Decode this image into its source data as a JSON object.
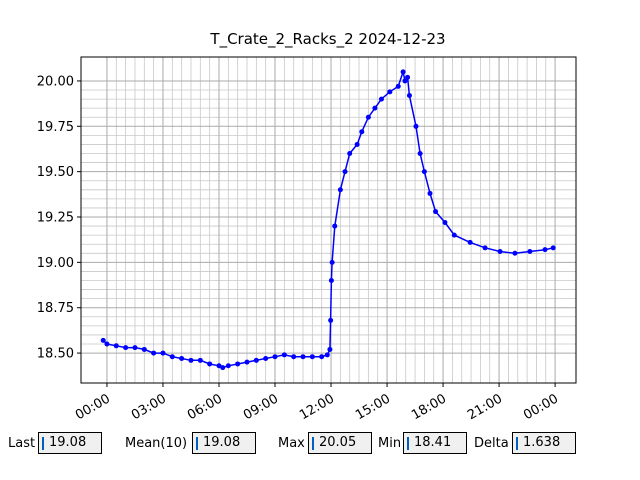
{
  "chart_data": {
    "type": "line",
    "title": "T_Crate_2_Racks_2 2024-12-23",
    "x": [
      -0.2,
      0,
      0.5,
      1,
      1.5,
      2,
      2.5,
      3,
      3.5,
      4,
      4.5,
      5,
      5.5,
      6,
      6.2,
      6.5,
      7,
      7.5,
      8,
      8.5,
      9,
      9.5,
      10,
      10.5,
      11,
      11.5,
      11.8,
      11.94,
      11.98,
      12.02,
      12.06,
      12.2,
      12.5,
      12.75,
      13.0,
      13.4,
      13.65,
      14.0,
      14.35,
      14.7,
      15.15,
      15.6,
      15.86,
      15.96,
      16.1,
      16.2,
      16.55,
      16.77,
      17.0,
      17.3,
      17.6,
      18.1,
      18.6,
      19.45,
      20.25,
      21.05,
      21.85,
      22.65,
      23.46,
      23.9
    ],
    "values": [
      18.57,
      18.55,
      18.54,
      18.53,
      18.53,
      18.52,
      18.5,
      18.5,
      18.48,
      18.47,
      18.46,
      18.46,
      18.44,
      18.43,
      18.42,
      18.43,
      18.44,
      18.45,
      18.46,
      18.47,
      18.48,
      18.49,
      18.48,
      18.48,
      18.48,
      18.48,
      18.49,
      18.52,
      18.68,
      18.9,
      19.0,
      19.2,
      19.4,
      19.5,
      19.6,
      19.65,
      19.72,
      19.8,
      19.85,
      19.9,
      19.94,
      19.97,
      20.05,
      20.0,
      20.02,
      19.92,
      19.75,
      19.6,
      19.5,
      19.38,
      19.28,
      19.22,
      19.15,
      19.11,
      19.08,
      19.06,
      19.05,
      19.06,
      19.07,
      19.08
    ],
    "color": "#0000ff",
    "xlim": [
      -1.39,
      25.12
    ],
    "xticks": [
      {
        "value": 0,
        "label": "00:00"
      },
      {
        "value": 3,
        "label": "03:00"
      },
      {
        "value": 6,
        "label": "06:00"
      },
      {
        "value": 9,
        "label": "09:00"
      },
      {
        "value": 12,
        "label": "12:00"
      },
      {
        "value": 15,
        "label": "15:00"
      },
      {
        "value": 18,
        "label": "18:00"
      },
      {
        "value": 21,
        "label": "21:00"
      },
      {
        "value": 24,
        "label": "00:00"
      }
    ],
    "ylim": [
      18.335,
      20.132
    ],
    "yticks": [
      {
        "value": 18.5,
        "label": "18.50"
      },
      {
        "value": 18.75,
        "label": "18.75"
      },
      {
        "value": 19,
        "label": "19.00"
      },
      {
        "value": 19.25,
        "label": "19.25"
      },
      {
        "value": 19.5,
        "label": "19.50"
      },
      {
        "value": 19.75,
        "label": "19.75"
      },
      {
        "value": 20,
        "label": "20.00"
      }
    ],
    "grid": true,
    "minor_grid": true
  },
  "stats": [
    {
      "label": "Last",
      "value": 19.08
    },
    {
      "label": "Mean(10)",
      "value": 19.08
    },
    {
      "label": "Max",
      "value": 20.05
    },
    {
      "label": "Min",
      "value": 18.41
    },
    {
      "label": "Delta",
      "value": 1.638
    }
  ]
}
